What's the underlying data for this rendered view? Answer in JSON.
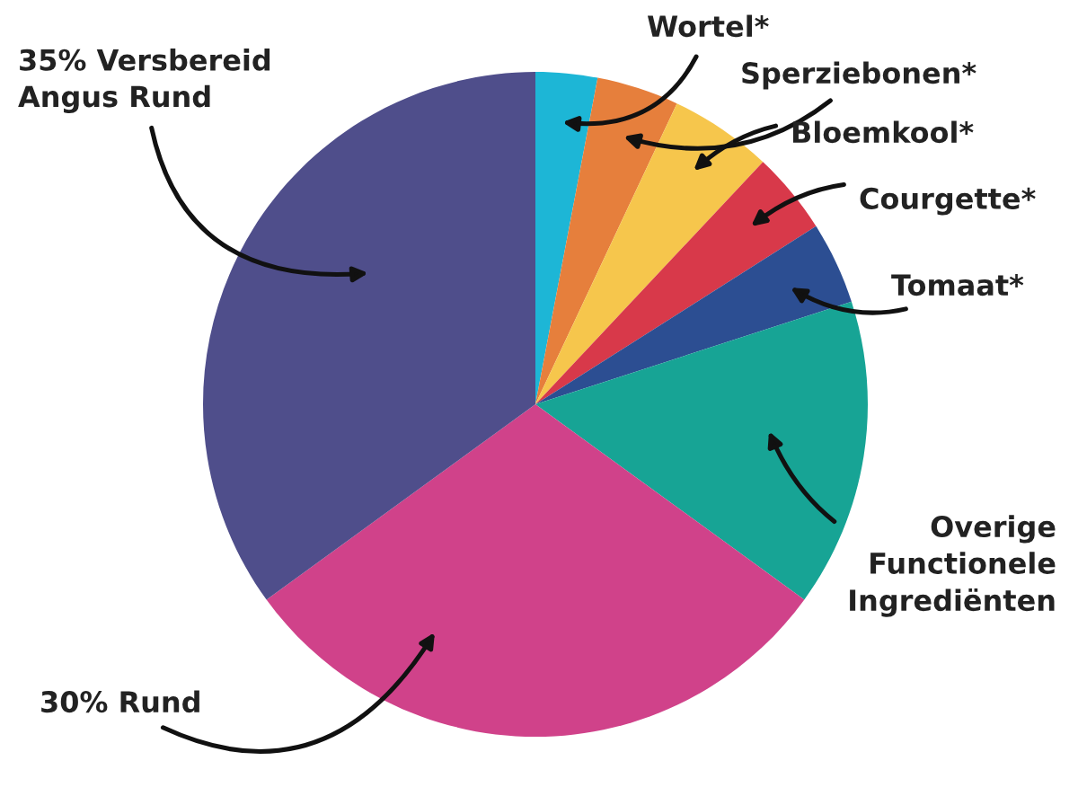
{
  "chart_data": {
    "type": "pie",
    "categories": [
      "Wortel*",
      "Sperziebonen*",
      "Bloemkool*",
      "Courgette*",
      "Tomaat*",
      "Overige\nFunctionele\nIngrediënten",
      "30% Rund",
      "35% Versbereid\nAngus Rund"
    ],
    "values": [
      3,
      4,
      5,
      4,
      4,
      15,
      30,
      35
    ],
    "colors": [
      "#1db6d6",
      "#e67f3c",
      "#f6c64c",
      "#d8394a",
      "#2c4e92",
      "#17a495",
      "#d0428a",
      "#4f4e8b"
    ],
    "legend": false
  }
}
